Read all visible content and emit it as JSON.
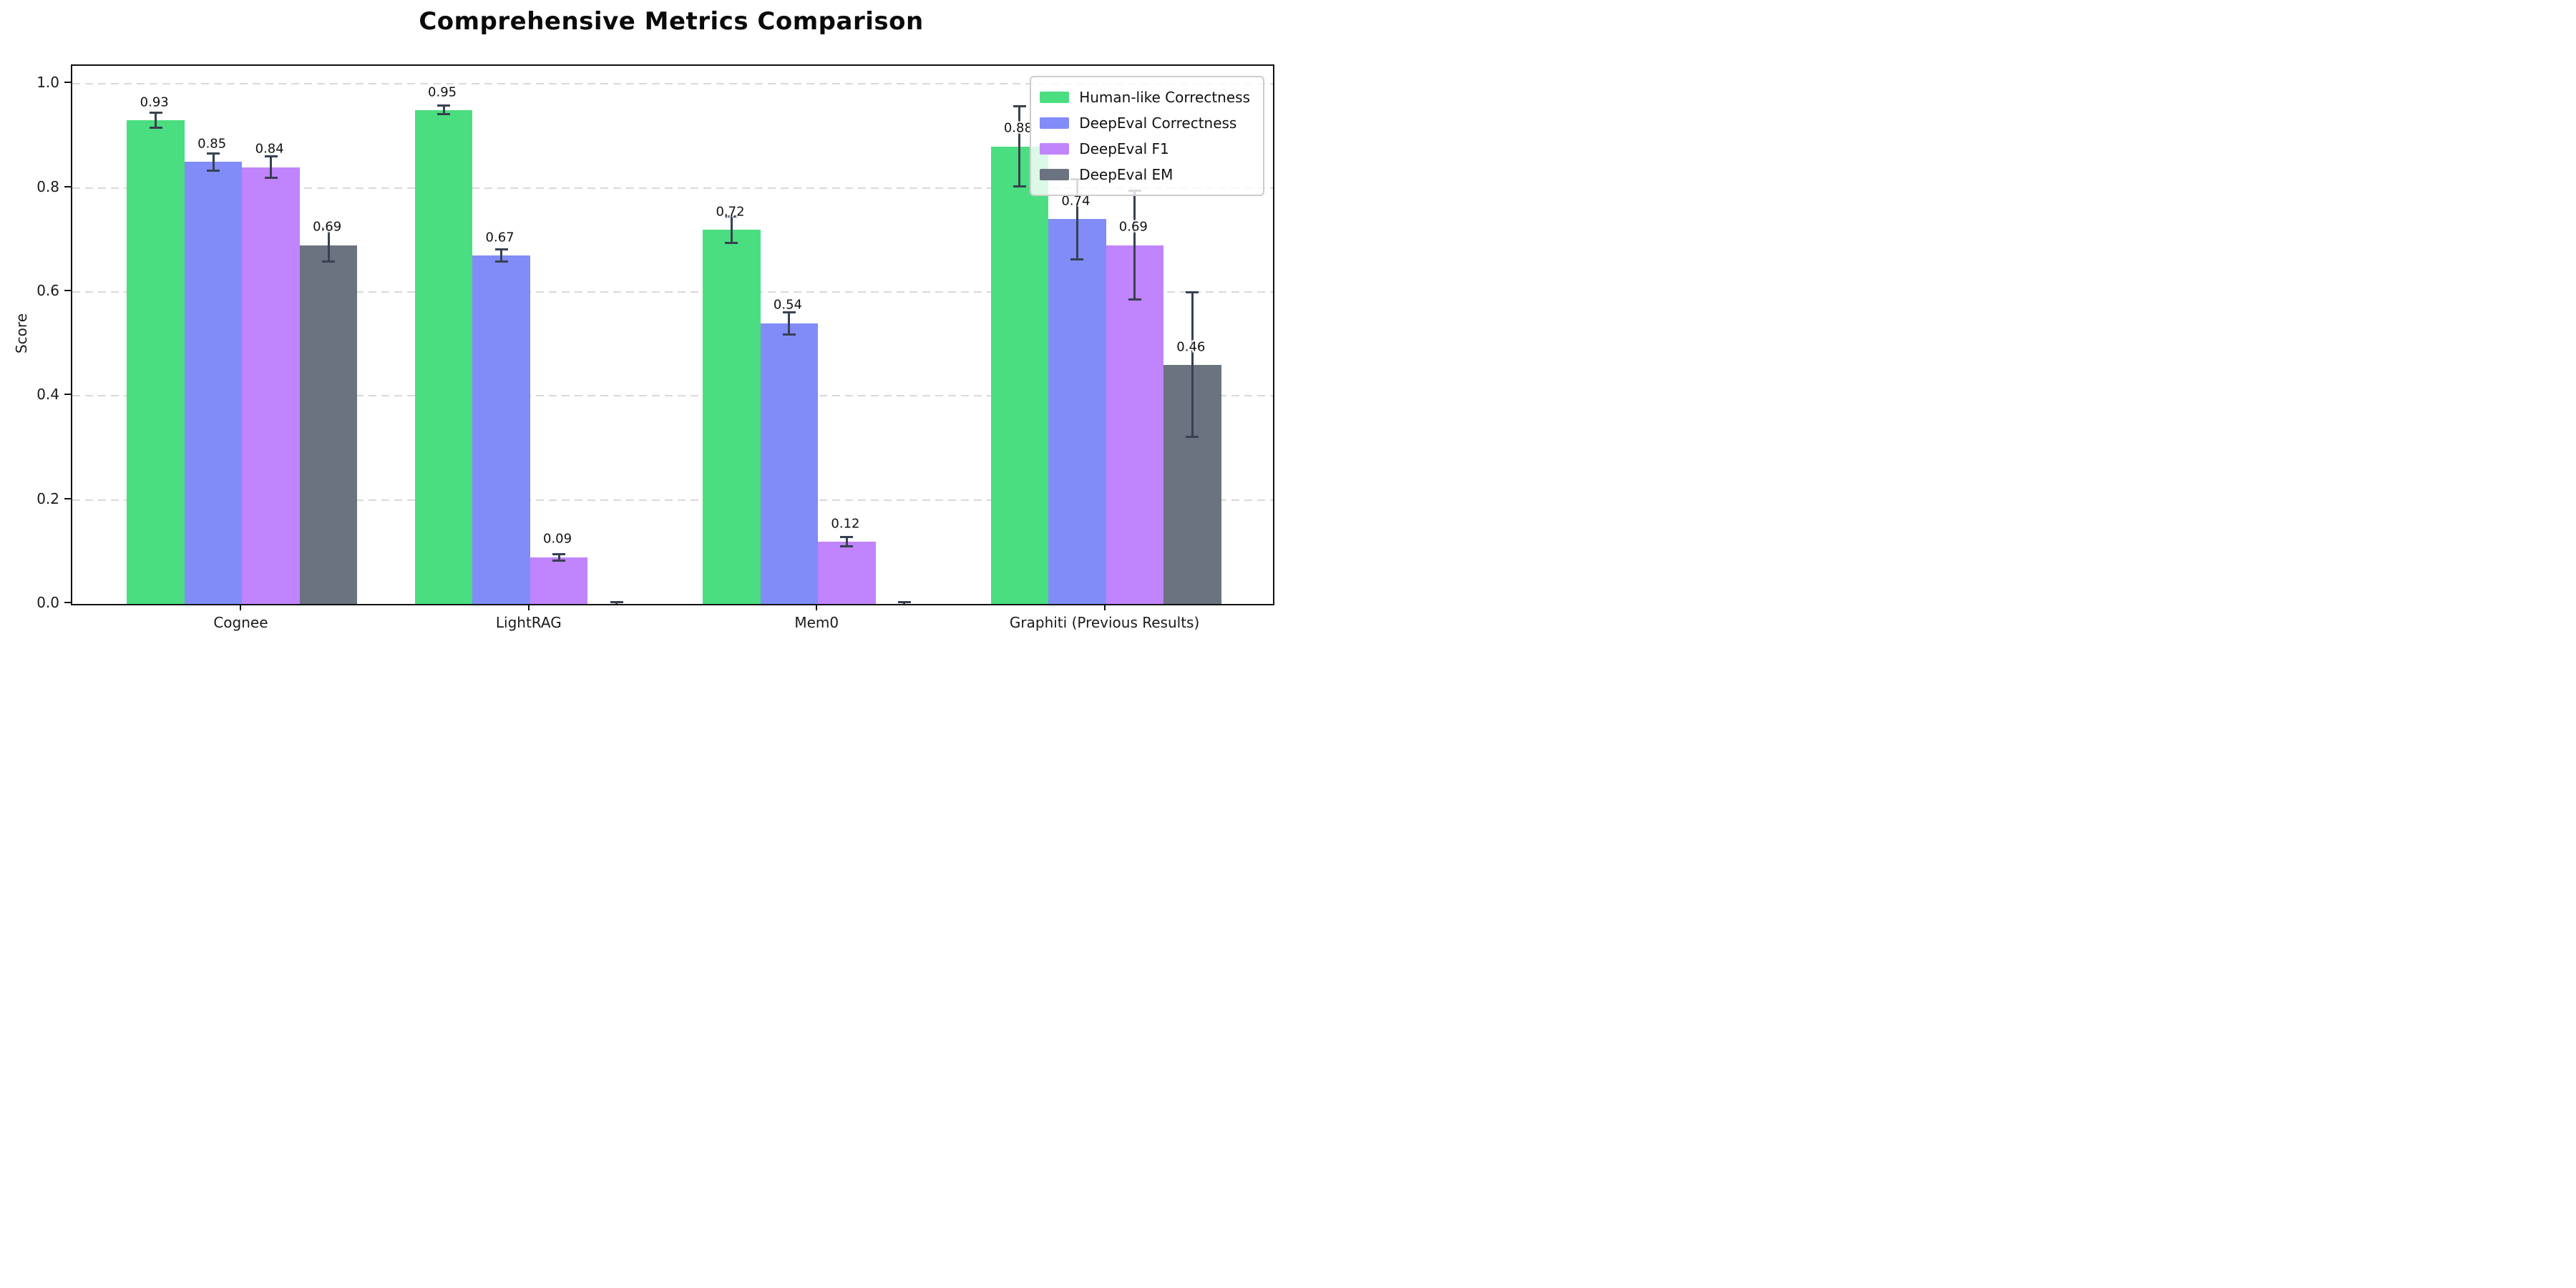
{
  "chart_data": {
    "type": "bar",
    "title": "Comprehensive Metrics Comparison",
    "ylabel": "Score",
    "categories": [
      "Cognee",
      "LightRAG",
      "Mem0",
      "Graphiti (Previous Results)"
    ],
    "series": [
      {
        "name": "Human-like Correctness",
        "color": "#4ade80",
        "values": [
          0.93,
          0.95,
          0.72,
          0.88
        ],
        "errors": [
          0.015,
          0.009,
          0.026,
          0.078
        ],
        "labels": [
          "0.93",
          "0.95",
          "0.72",
          "0.88"
        ]
      },
      {
        "name": "DeepEval Correctness",
        "color": "#818cf8",
        "values": [
          0.85,
          0.67,
          0.54,
          0.74
        ],
        "errors": [
          0.017,
          0.012,
          0.022,
          0.078
        ],
        "labels": [
          "0.85",
          "0.67",
          "0.54",
          "0.74"
        ]
      },
      {
        "name": "DeepEval F1",
        "color": "#c084fc",
        "values": [
          0.84,
          0.09,
          0.12,
          0.69
        ],
        "errors": [
          0.021,
          0.007,
          0.01,
          0.105
        ],
        "labels": [
          "0.84",
          "0.09",
          "0.12",
          "0.69"
        ]
      },
      {
        "name": "DeepEval EM",
        "color": "#6b7280",
        "values": [
          0.69,
          0.0,
          0.0,
          0.46
        ],
        "errors": [
          0.032,
          0.004,
          0.004,
          0.14
        ],
        "labels": [
          "0.69",
          "",
          "",
          "0.46"
        ]
      }
    ],
    "yticks": [
      "0.0",
      "0.2",
      "0.4",
      "0.6",
      "0.8",
      "1.0"
    ],
    "ytick_values": [
      0.0,
      0.2,
      0.4,
      0.6,
      0.8,
      1.0
    ],
    "ylim": [
      0,
      1.035
    ],
    "grid": "dashed-horizontal",
    "legend_position": "upper-right",
    "colors": {
      "grid": "#d9d9d9",
      "axis": "#111111",
      "error_bar": "#374151",
      "background": "#ffffff",
      "legend_border": "#cccccc"
    }
  }
}
